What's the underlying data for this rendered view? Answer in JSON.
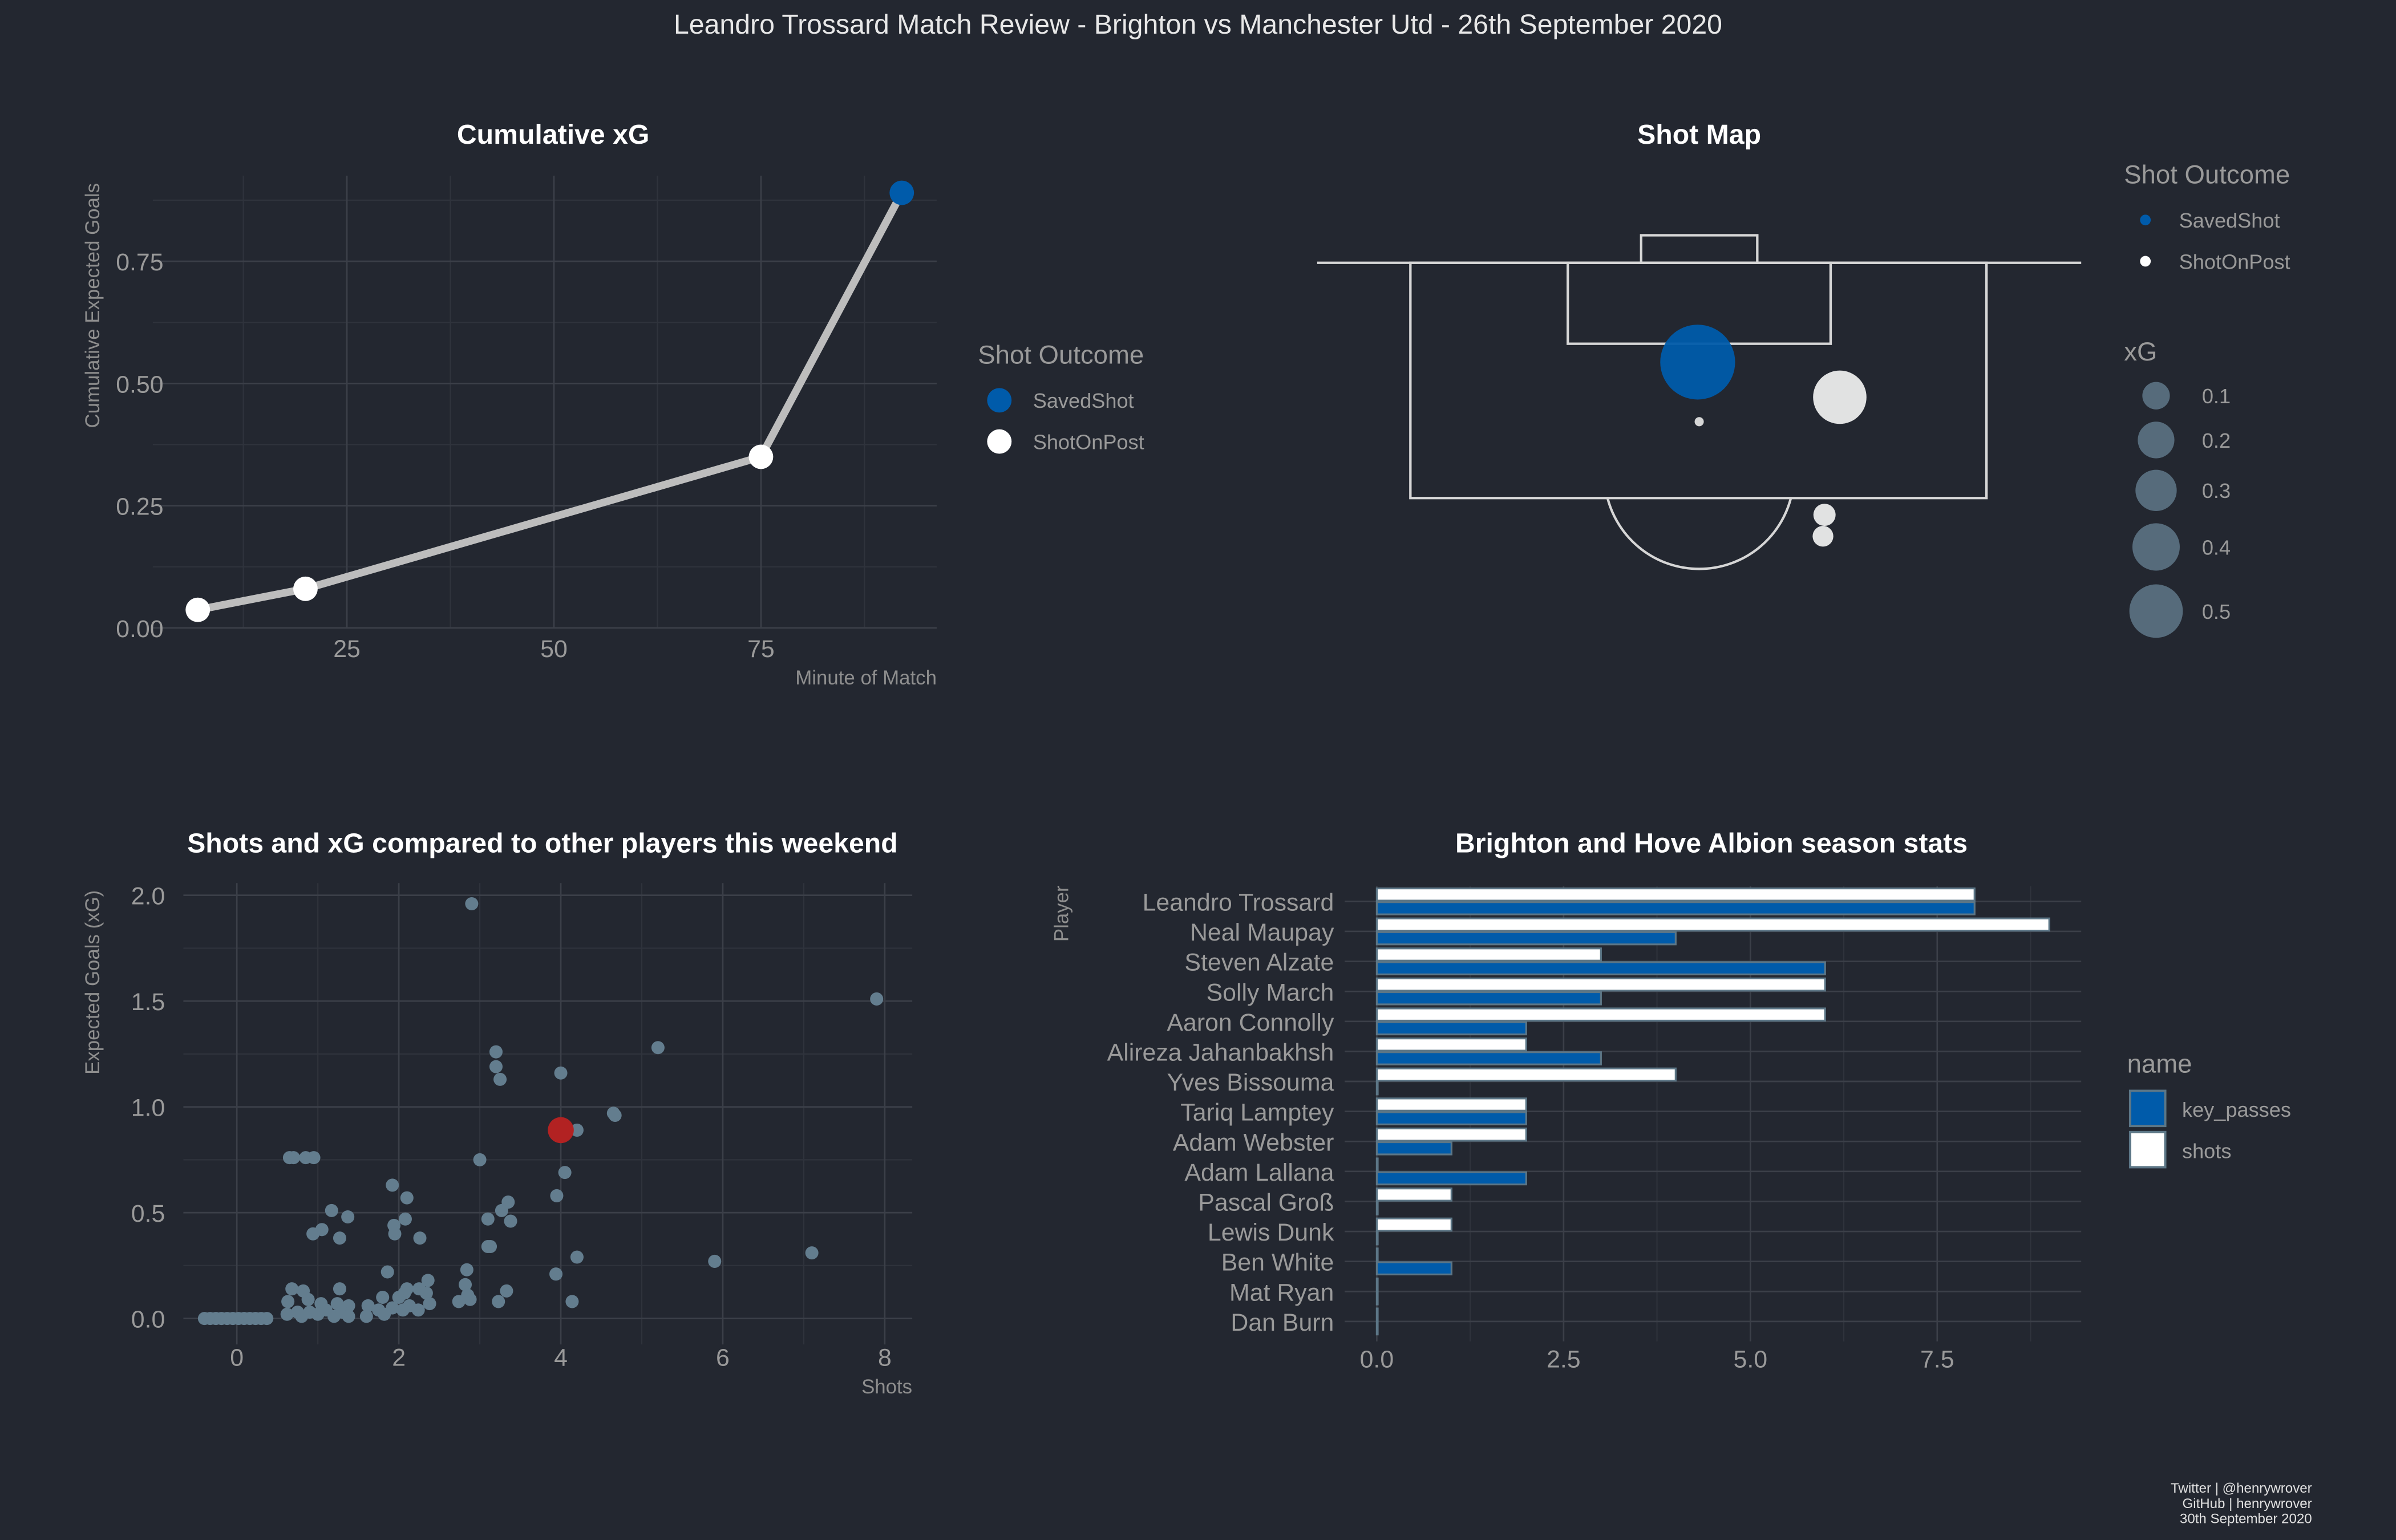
{
  "title": "Leandro Trossard Match Review - Brighton vs Manchester Utd - 26th September 2020",
  "colors": {
    "background": "#232730",
    "saved_shot": "#005baa",
    "shot_on_post": "#ffffff",
    "others": "#637d8e",
    "highlight": "#b22222",
    "line": "#bdbdbd"
  },
  "footer": [
    "Twitter | @henrywrover",
    "GitHub | henrywrover",
    "30th September 2020"
  ],
  "chart_data": [
    {
      "type": "line",
      "title": "Cumulative xG",
      "xlabel": "Minute of Match",
      "ylabel": "Cumulative Expected Goals",
      "xticks": [
        "25",
        "50",
        "75"
      ],
      "yticks": [
        "0.00",
        "0.25",
        "0.50",
        "0.75"
      ],
      "xlim": [
        2,
        97
      ],
      "ylim": [
        0,
        0.93
      ],
      "grid": true,
      "legend": {
        "title": "Shot Outcome",
        "position": "right",
        "items": [
          "SavedShot",
          "ShotOnPost"
        ]
      },
      "points": [
        {
          "minute": 7,
          "cum_xg": 0.037,
          "outcome": "ShotOnPost"
        },
        {
          "minute": 20,
          "cum_xg": 0.08,
          "outcome": "ShotOnPost"
        },
        {
          "minute": 75,
          "cum_xg": 0.35,
          "outcome": "ShotOnPost"
        },
        {
          "minute": 92,
          "cum_xg": 0.89,
          "outcome": "SavedShot"
        }
      ]
    },
    {
      "type": "scatter",
      "title": "Shot Map",
      "legend": {
        "title": "Shot Outcome",
        "items": [
          "SavedShot",
          "ShotOnPost"
        ],
        "size_title": "xG",
        "size_items": [
          "0.1",
          "0.2",
          "0.3",
          "0.4",
          "0.5"
        ]
      },
      "shots": [
        {
          "outcome": "SavedShot",
          "xg": 0.54
        },
        {
          "outcome": "ShotOnPost",
          "xg": 0.27
        },
        {
          "outcome": "ShotOnPost",
          "xg": 0.043
        },
        {
          "outcome": "ShotOnPost",
          "xg": 0.037
        }
      ]
    },
    {
      "type": "scatter",
      "title": "Shots and xG compared to other players this weekend",
      "xlabel": "Shots",
      "ylabel": "Expected Goals (xG)",
      "xticks": [
        "0",
        "2",
        "4",
        "6",
        "8"
      ],
      "yticks": [
        "0.0",
        "0.5",
        "1.0",
        "1.5",
        "2.0"
      ],
      "xlim": [
        -0.65,
        8.3
      ],
      "ylim": [
        -0.05,
        2.1
      ],
      "grid": true,
      "highlight": {
        "shots": 4,
        "xg": 0.89
      },
      "points": [
        [
          2.9,
          1.96
        ],
        [
          7.9,
          1.51
        ],
        [
          5.2,
          1.28
        ],
        [
          3.2,
          1.26
        ],
        [
          3.2,
          1.19
        ],
        [
          3.25,
          1.13
        ],
        [
          4,
          1.16
        ],
        [
          4.65,
          0.97
        ],
        [
          4.67,
          0.96
        ],
        [
          4.2,
          0.89
        ],
        [
          0.65,
          0.76
        ],
        [
          0.7,
          0.76
        ],
        [
          0.85,
          0.76
        ],
        [
          0.95,
          0.76
        ],
        [
          3.0,
          0.75
        ],
        [
          4.05,
          0.69
        ],
        [
          1.92,
          0.63
        ],
        [
          2.1,
          0.57
        ],
        [
          3.95,
          0.58
        ],
        [
          3.35,
          0.55
        ],
        [
          3.27,
          0.51
        ],
        [
          1.17,
          0.51
        ],
        [
          1.37,
          0.48
        ],
        [
          3.1,
          0.47
        ],
        [
          3.38,
          0.46
        ],
        [
          2.08,
          0.47
        ],
        [
          1.94,
          0.44
        ],
        [
          1.95,
          0.4
        ],
        [
          0.94,
          0.4
        ],
        [
          1.05,
          0.42
        ],
        [
          1.27,
          0.38
        ],
        [
          2.26,
          0.38
        ],
        [
          3.1,
          0.34
        ],
        [
          3.13,
          0.34
        ],
        [
          4.2,
          0.29
        ],
        [
          5.9,
          0.27
        ],
        [
          7.1,
          0.31
        ],
        [
          1.86,
          0.22
        ],
        [
          2.84,
          0.23
        ],
        [
          3.94,
          0.21
        ],
        [
          2.36,
          0.18
        ],
        [
          2.82,
          0.16
        ],
        [
          3.33,
          0.13
        ],
        [
          4.14,
          0.08
        ],
        [
          3.23,
          0.08
        ],
        [
          2.74,
          0.08
        ],
        [
          2.88,
          0.09
        ],
        [
          2.85,
          0.11
        ],
        [
          1.27,
          0.14
        ],
        [
          0.68,
          0.14
        ],
        [
          0.82,
          0.13
        ],
        [
          0.88,
          0.09
        ],
        [
          0.63,
          0.08
        ],
        [
          1.04,
          0.07
        ],
        [
          1.24,
          0.07
        ],
        [
          1.38,
          0.06
        ],
        [
          1.8,
          0.1
        ],
        [
          1.62,
          0.06
        ],
        [
          2.0,
          0.1
        ],
        [
          2.07,
          0.12
        ],
        [
          2.1,
          0.14
        ],
        [
          2.25,
          0.14
        ],
        [
          2.34,
          0.12
        ],
        [
          2.38,
          0.07
        ],
        [
          2.13,
          0.06
        ],
        [
          2.24,
          0.04
        ],
        [
          2.05,
          0.04
        ],
        [
          1.92,
          0.05
        ],
        [
          1.75,
          0.04
        ],
        [
          1.82,
          0.02
        ],
        [
          1.6,
          0.01
        ],
        [
          0.62,
          0.02
        ],
        [
          0.75,
          0.03
        ],
        [
          0.8,
          0.01
        ],
        [
          0.9,
          0.03
        ],
        [
          1.0,
          0.02
        ],
        [
          1.1,
          0.04
        ],
        [
          1.2,
          0.01
        ],
        [
          1.3,
          0.03
        ],
        [
          1.38,
          0.01
        ],
        [
          -0.4,
          0
        ],
        [
          -0.33,
          0
        ],
        [
          -0.26,
          0
        ],
        [
          -0.19,
          0
        ],
        [
          -0.12,
          0
        ],
        [
          -0.05,
          0
        ],
        [
          0.02,
          0
        ],
        [
          0.09,
          0
        ],
        [
          0.16,
          0
        ],
        [
          0.23,
          0
        ],
        [
          0.3,
          0
        ],
        [
          0.37,
          0
        ]
      ]
    },
    {
      "type": "bar",
      "orientation": "horizontal",
      "title": "Brighton and Hove Albion season stats",
      "ylabel": "Player",
      "xticks": [
        "0.0",
        "2.5",
        "5.0",
        "7.5"
      ],
      "xlim": [
        0,
        9.4
      ],
      "grid": true,
      "legend": {
        "title": "name",
        "position": "right",
        "items": [
          "key_passes",
          "shots"
        ]
      },
      "categories": [
        "Leandro Trossard",
        "Neal Maupay",
        "Steven Alzate",
        "Solly March",
        "Aaron Connolly",
        "Alireza Jahanbakhsh",
        "Yves Bissouma",
        "Tariq Lamptey",
        "Adam Webster",
        "Adam Lallana",
        "Pascal Groß",
        "Lewis Dunk",
        "Ben White",
        "Mat Ryan",
        "Dan Burn"
      ],
      "series": [
        {
          "name": "shots",
          "values": [
            8,
            9,
            3,
            6,
            6,
            2,
            4,
            2,
            2,
            0,
            1,
            1,
            0,
            0,
            0
          ]
        },
        {
          "name": "key_passes",
          "values": [
            8,
            4,
            6,
            3,
            2,
            3,
            0,
            2,
            1,
            2,
            0,
            0,
            1,
            0,
            0
          ]
        }
      ]
    }
  ]
}
